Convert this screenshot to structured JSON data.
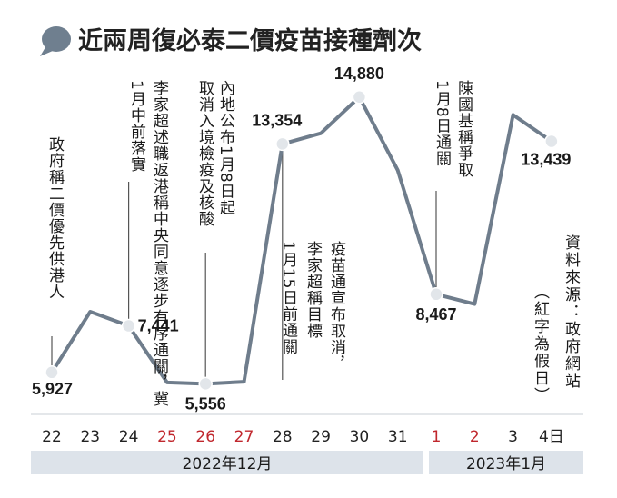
{
  "chart_data": {
    "type": "line",
    "title": "近兩周復必泰二價疫苗接種劑次",
    "x": [
      "22",
      "23",
      "24",
      "25",
      "26",
      "27",
      "28",
      "29",
      "30",
      "31",
      "1",
      "2",
      "3",
      "4日"
    ],
    "values": [
      5927,
      7900,
      7441,
      5600,
      5556,
      5620,
      13354,
      13700,
      14880,
      12500,
      8467,
      8150,
      14300,
      13439
    ],
    "labeled_points": [
      {
        "index": 0,
        "text": "5,927"
      },
      {
        "index": 2,
        "text": "7,441"
      },
      {
        "index": 4,
        "text": "5,556"
      },
      {
        "index": 6,
        "text": "13,354"
      },
      {
        "index": 8,
        "text": "14,880"
      },
      {
        "index": 10,
        "text": "8,467"
      },
      {
        "index": 13,
        "text": "13,439"
      }
    ],
    "tick_colors": [
      "#222222",
      "#222222",
      "#222222",
      "#c0272d",
      "#c0272d",
      "#c0272d",
      "#222222",
      "#222222",
      "#222222",
      "#222222",
      "#c0272d",
      "#c0272d",
      "#222222",
      "#222222"
    ],
    "annotations": [
      {
        "index": 0,
        "lines": [
          "政府稱二價優先供港人"
        ]
      },
      {
        "index": 2,
        "lines": [
          "李家超述職返港稱中央同意逐步有序通關，冀",
          "1月中前落實"
        ]
      },
      {
        "index": 4,
        "lines": [
          "內地公布1月8日起",
          "取消入境檢疫及核酸"
        ]
      },
      {
        "index": 6,
        "lines": [
          "1月15日前通關",
          "李家超稱目標",
          "疫苗通宣布取消，"
        ]
      },
      {
        "index": 10,
        "lines": [
          "1月8日通關",
          "陳國基稱爭取"
        ]
      }
    ],
    "source_note": [
      "資料來源：政府網站",
      "（紅字為假日）"
    ],
    "footer_groups": [
      "2022年12月",
      "2023年1月"
    ],
    "ylim": [
      4000,
      17000
    ],
    "grid": false
  },
  "colors": {
    "line": "#6f7d8c",
    "marker": "#e2e6ea",
    "footer_bg": "#dde3ea",
    "title_icon": "#6f7f8f",
    "holiday": "#c0272d"
  }
}
